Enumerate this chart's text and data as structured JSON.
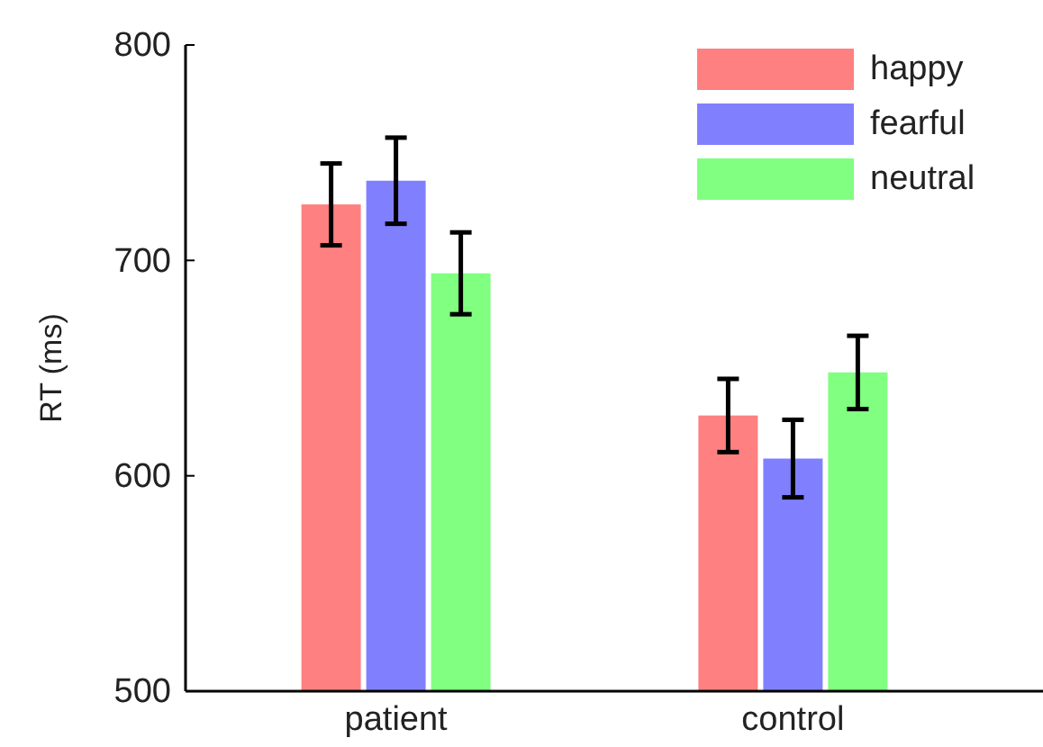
{
  "chart_data": {
    "type": "bar",
    "ylabel": "RT (ms)",
    "categories": [
      "patient",
      "control"
    ],
    "series": [
      {
        "name": "happy",
        "color": "#ff8080",
        "values": [
          726,
          628
        ],
        "errors": [
          19,
          17
        ]
      },
      {
        "name": "fearful",
        "color": "#8080ff",
        "values": [
          737,
          608
        ],
        "errors": [
          20,
          18
        ]
      },
      {
        "name": "neutral",
        "color": "#80ff80",
        "values": [
          694,
          648
        ],
        "errors": [
          19,
          17
        ]
      }
    ],
    "ylim": [
      500,
      800
    ],
    "yticks": [
      500,
      600,
      700,
      800
    ],
    "grid": false,
    "legend": "top right"
  }
}
